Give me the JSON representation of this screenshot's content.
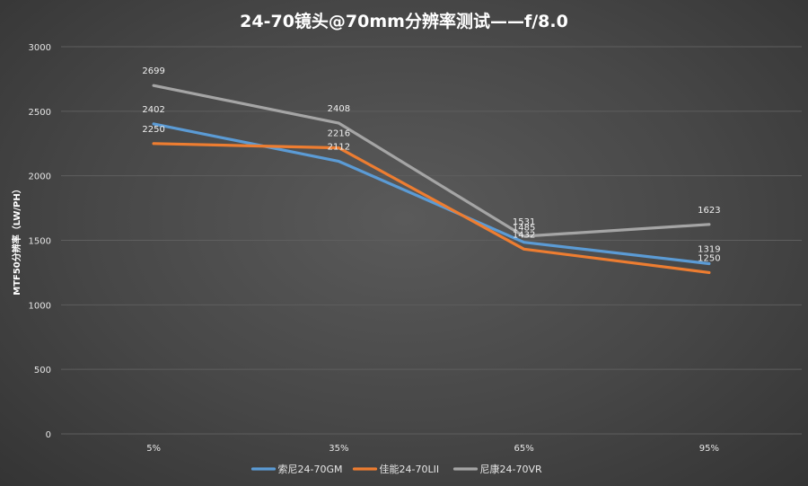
{
  "chart_data": {
    "type": "line",
    "title": "24-70镜头@70mm分辨率测试——f/8.0",
    "xlabel": "",
    "ylabel": "MTF50分辨率（LW/PH）",
    "categories": [
      "5%",
      "35%",
      "65%",
      "95%"
    ],
    "ylim": [
      0,
      3000
    ],
    "yticks": [
      "0",
      "500",
      "1000",
      "1500",
      "2000",
      "2500",
      "3000"
    ],
    "grid": true,
    "legend": "bottom-center",
    "series": [
      {
        "name": "索尼24-70GM",
        "values": [
          2402,
          2112,
          1485,
          1319
        ],
        "labels": [
          "2402",
          "2112",
          "1485",
          "1319"
        ],
        "color": "#5b9bd5"
      },
      {
        "name": "佳能24-70LII",
        "values": [
          2250,
          2216,
          1432,
          1250
        ],
        "labels": [
          "2250",
          "2216",
          "1432",
          "1250"
        ],
        "color": "#ed7d31"
      },
      {
        "name": "尼康24-70VR",
        "values": [
          2699,
          2408,
          1531,
          1623
        ],
        "labels": [
          "2699",
          "2408",
          "1531",
          "1623"
        ],
        "color": "#a5a5a5"
      }
    ]
  }
}
